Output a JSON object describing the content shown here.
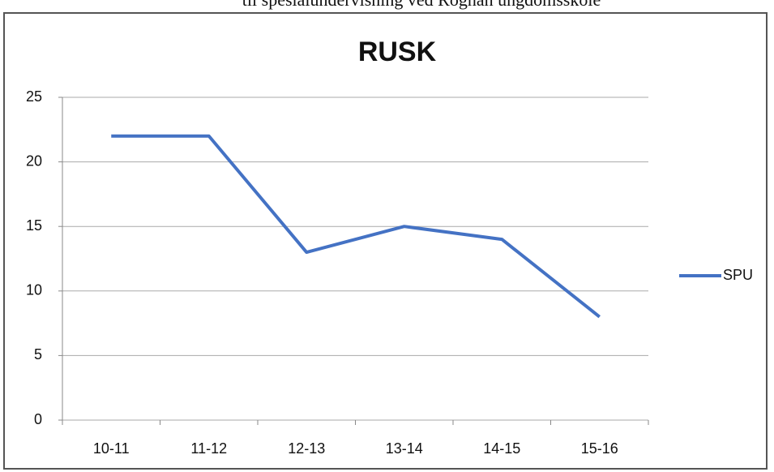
{
  "header": {
    "text": "til spesialundervisning ved Rognan ungdomsskole"
  },
  "chart_data": {
    "type": "line",
    "title": "RUSK",
    "categories": [
      "10-11",
      "11-12",
      "12-13",
      "13-14",
      "14-15",
      "15-16"
    ],
    "series": [
      {
        "name": "SPU",
        "color": "#4472c4",
        "values": [
          22,
          22,
          13,
          15,
          14,
          8
        ]
      }
    ],
    "ylim": [
      0,
      25
    ],
    "yticks": [
      0,
      5,
      10,
      15,
      20,
      25
    ],
    "grid": true,
    "legend": "right"
  }
}
